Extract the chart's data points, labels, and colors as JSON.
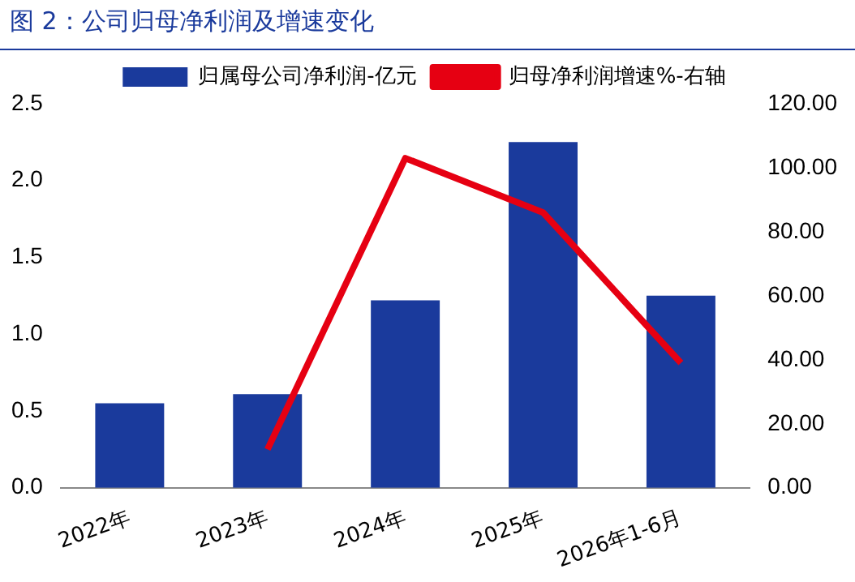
{
  "chart_data": {
    "type": "bar",
    "title": "图 2：公司归母净利润及增速变化",
    "categories": [
      "2022年",
      "2023年",
      "2024年",
      "2025年",
      "2026年1-6月"
    ],
    "series": [
      {
        "name": "归属母公司净利润-亿元",
        "color": "#1a3a9c",
        "values": [
          0.55,
          0.61,
          1.22,
          2.25,
          1.25
        ]
      },
      {
        "name": "归母净利润增速%-右轴",
        "type": "line",
        "axis": "y2",
        "color": "#e60012",
        "values": [
          null,
          12,
          103,
          86,
          39
        ]
      }
    ],
    "ylim": [
      0,
      2.5
    ],
    "yticks": [
      {
        "value": 0,
        "label": "0.0"
      },
      {
        "value": 0.5,
        "label": "0.5"
      },
      {
        "value": 1,
        "label": "1.0"
      },
      {
        "value": 1.5,
        "label": "1.5"
      },
      {
        "value": 2,
        "label": "2.0"
      },
      {
        "value": 2.5,
        "label": "2.5"
      }
    ],
    "y2lim": [
      0,
      120
    ],
    "y2ticks": [
      {
        "value": 0,
        "label": "0.00"
      },
      {
        "value": 20,
        "label": "20.00"
      },
      {
        "value": 40,
        "label": "40.00"
      },
      {
        "value": 60,
        "label": "60.00"
      },
      {
        "value": 80,
        "label": "80.00"
      },
      {
        "value": 100,
        "label": "100.00"
      },
      {
        "value": 120,
        "label": "120.00"
      }
    ],
    "grid": false,
    "legend": "top",
    "marker": "none"
  }
}
